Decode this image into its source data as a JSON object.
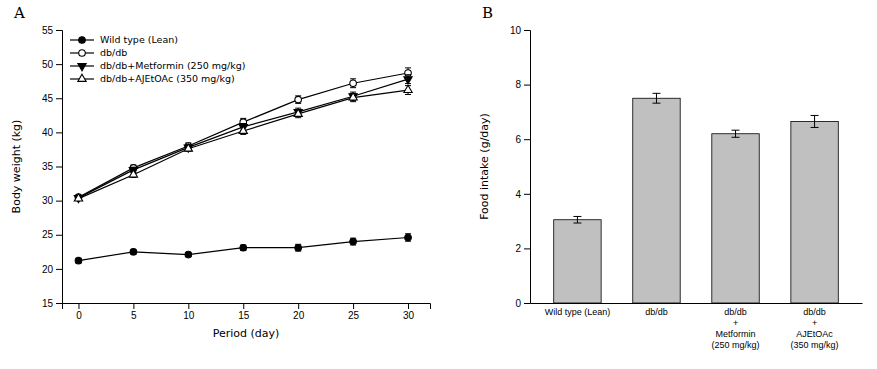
{
  "chart_data": [
    {
      "type": "line",
      "title": "A",
      "xlabel": "Period (day)",
      "ylabel": "Body weight (kg)",
      "xlim": [
        -1.5,
        32
      ],
      "ylim": [
        15,
        55
      ],
      "xticks": [
        0,
        5,
        10,
        15,
        20,
        25,
        30
      ],
      "yticks": [
        15,
        20,
        25,
        30,
        35,
        40,
        45,
        50,
        55
      ],
      "x": [
        0,
        5,
        10,
        15,
        20,
        25,
        30
      ],
      "legend": "upper left",
      "series": [
        {
          "name": "Wild type (Lean)",
          "color": "black",
          "marker": "circle",
          "line_style": "solid",
          "values": [
            21.2,
            22.5,
            22.1,
            23.1,
            23.1,
            24.0,
            24.6
          ],
          "errors": [
            0.3,
            0.35,
            0.3,
            0.4,
            0.5,
            0.5,
            0.55
          ]
        },
        {
          "name": "db/db",
          "color": "black",
          "marker": "circle-open",
          "line_style": "solid",
          "values": [
            30.5,
            34.8,
            38.0,
            41.5,
            44.8,
            47.2,
            48.7
          ],
          "errors": [
            0.3,
            0.4,
            0.45,
            0.55,
            0.55,
            0.65,
            0.75
          ]
        },
        {
          "name": "db/db+Metformin (250 mg/kg)",
          "color": "black",
          "marker": "triangle-down",
          "line_style": "solid",
          "values": [
            30.4,
            34.5,
            37.8,
            40.8,
            43.0,
            45.3,
            47.8
          ],
          "errors": [
            0.3,
            0.4,
            0.4,
            0.5,
            0.55,
            0.6,
            0.65
          ]
        },
        {
          "name": "db/db+AJEtOAc (350 mg/kg)",
          "color": "black",
          "marker": "triangle-up-open",
          "line_style": "solid",
          "values": [
            30.3,
            33.8,
            37.6,
            40.2,
            42.7,
            45.1,
            46.2
          ],
          "errors": [
            0.3,
            0.4,
            0.4,
            0.5,
            0.55,
            0.6,
            0.65
          ]
        }
      ]
    },
    {
      "type": "bar",
      "title": "B",
      "ylabel": "Food intake (g/day)",
      "ylim": [
        0,
        10
      ],
      "yticks": [
        0,
        2,
        4,
        6,
        8,
        10
      ],
      "categories": [
        "Wild type (Lean)",
        "db/db",
        "db/db\n+\nMetformin\n(250 mg/kg)",
        "db/db\n+\nAJEtOAc\n(350 mg/kg)"
      ],
      "values": [
        3.05,
        7.5,
        6.2,
        6.65
      ],
      "errors": [
        0.12,
        0.18,
        0.13,
        0.22
      ],
      "color": "#c0c0c0"
    }
  ]
}
